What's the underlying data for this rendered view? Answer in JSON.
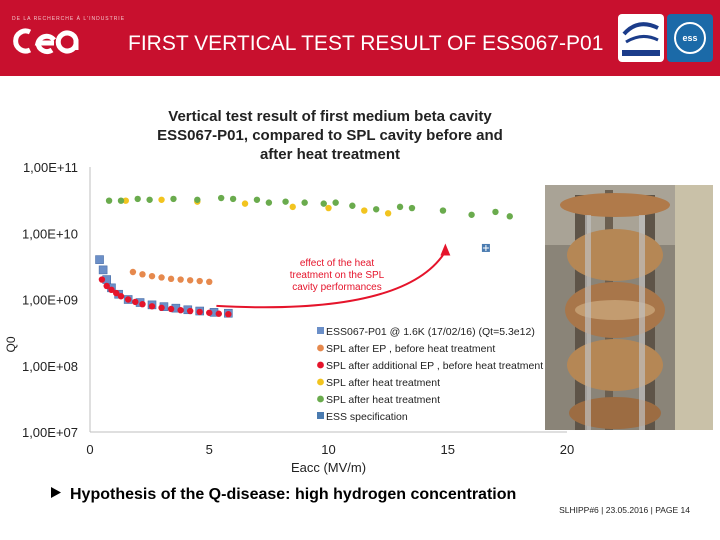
{
  "header": {
    "title": "FIRST VERTICAL TEST RESULT OF ESS067-P01",
    "brand_sub": "DE LA RECHERCHE À L'INDUSTRIE",
    "accent": "#c8102e",
    "ess_logo_text": "ess"
  },
  "chart_data": {
    "type": "scatter",
    "title": "Vertical test result of first medium beta cavity ESS067-P01, compared to SPL cavity before and after heat treatment",
    "title_lines": [
      "Vertical test result of first medium beta cavity",
      "ESS067-P01, compared to SPL cavity before and",
      "after heat treatment"
    ],
    "xlabel": "Eacc (MV/m)",
    "ylabel": "Q0",
    "xlim": [
      0,
      20
    ],
    "ylim": [
      10000000,
      100000000000
    ],
    "yscale": "log",
    "xticks": [
      "0",
      "5",
      "10",
      "15",
      "20"
    ],
    "yticks": [
      "1,00E+07",
      "1,00E+08",
      "1,00E+09",
      "1,00E+10",
      "1,00E+11"
    ],
    "grid": false,
    "legend_position": "bottom-right",
    "annotation": "effect of the heat treatment on the SPL cavity performances",
    "annotation_lines": [
      "effect of the heat",
      "treatment on the SPL",
      "cavity performances"
    ],
    "series": [
      {
        "name": "ESS067-P01 @ 1.6K (17/02/16) (Qt=5.3e12)",
        "color": "#6b8fc8",
        "marker": "square",
        "x": [
          0.4,
          0.55,
          0.7,
          0.9,
          1.2,
          1.6,
          2.1,
          2.6,
          3.1,
          3.6,
          4.1,
          4.6,
          5.2,
          5.8
        ],
        "y": [
          4000000000.0,
          2800000000.0,
          2000000000.0,
          1500000000.0,
          1200000000.0,
          1000000000.0,
          900000000.0,
          830000000.0,
          780000000.0,
          740000000.0,
          700000000.0,
          670000000.0,
          640000000.0,
          620000000.0
        ]
      },
      {
        "name": "SPL after EP , before heat treatment",
        "color": "#e6894d",
        "marker": "circle",
        "x": [
          1.8,
          2.2,
          2.6,
          3.0,
          3.4,
          3.8,
          4.2,
          4.6,
          5.0
        ],
        "y": [
          2600000000.0,
          2400000000.0,
          2250000000.0,
          2150000000.0,
          2050000000.0,
          2000000000.0,
          1950000000.0,
          1900000000.0,
          1850000000.0
        ]
      },
      {
        "name": "SPL after additional EP , before heat treatment",
        "color": "#e5142b",
        "marker": "circle",
        "x": [
          0.5,
          0.7,
          0.9,
          1.1,
          1.3,
          1.6,
          1.9,
          2.2,
          2.6,
          3.0,
          3.4,
          3.8,
          4.2,
          4.6,
          5.0,
          5.4,
          5.8
        ],
        "y": [
          2000000000.0,
          1600000000.0,
          1400000000.0,
          1250000000.0,
          1120000000.0,
          1000000000.0,
          920000000.0,
          850000000.0,
          790000000.0,
          750000000.0,
          720000000.0,
          690000000.0,
          670000000.0,
          650000000.0,
          630000000.0,
          610000000.0,
          600000000.0
        ]
      },
      {
        "name": "SPL after heat treatment",
        "color": "#f2c41f",
        "marker": "circle",
        "x": [
          1.5,
          3.0,
          4.5,
          6.5,
          8.5,
          10.0,
          11.5,
          12.5
        ],
        "y": [
          31000000000.0,
          32000000000.0,
          30000000000.0,
          28000000000.0,
          25000000000.0,
          24000000000.0,
          22000000000.0,
          20000000000.0
        ]
      },
      {
        "name": "SPL after heat treatment",
        "color": "#6aab4d",
        "marker": "circle",
        "x": [
          0.8,
          1.3,
          2.0,
          2.5,
          3.5,
          4.5,
          5.5,
          6.0,
          7.0,
          7.5,
          8.2,
          9.0,
          9.8,
          10.3,
          11.0,
          12.0,
          13.0,
          13.5,
          14.8,
          16.0,
          17.0,
          17.6
        ],
        "y": [
          31000000000.0,
          31000000000.0,
          33000000000.0,
          32000000000.0,
          33000000000.0,
          32000000000.0,
          34000000000.0,
          33000000000.0,
          32000000000.0,
          29000000000.0,
          30000000000.0,
          29000000000.0,
          28000000000.0,
          29000000000.0,
          26000000000.0,
          23000000000.0,
          25000000000.0,
          24000000000.0,
          22000000000.0,
          19000000000.0,
          21000000000.0,
          18000000000.0
        ]
      },
      {
        "name": "ESS specification",
        "color": "#4a7bb0",
        "marker": "square-plus",
        "x": [
          16.6
        ],
        "y": [
          6000000000.0
        ]
      }
    ],
    "arrow": {
      "color": "#e5142b",
      "x": [
        5.3,
        14.9
      ],
      "y": [
        800000000.0,
        7000000000.0
      ]
    }
  },
  "photo": {
    "description_icon": "cavity-photo"
  },
  "bullet": {
    "icon": "arrow-bullet-icon",
    "text": "Hypothesis of the Q-disease: high hydrogen concentration"
  },
  "footer": {
    "text": "SLHIPP#6 | 23.05.2016 | PAGE 14"
  }
}
